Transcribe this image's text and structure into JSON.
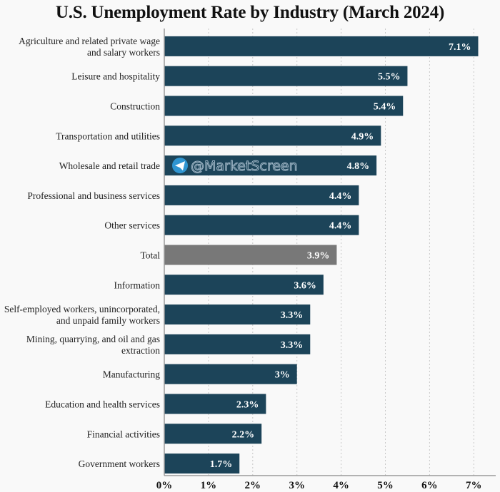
{
  "chart_data": {
    "type": "bar",
    "orientation": "horizontal",
    "title": "U.S. Unemployment Rate by Industry (March 2024)",
    "xlabel": "",
    "ylabel": "",
    "xlim": [
      0,
      7.5
    ],
    "xticks": [
      0,
      1,
      2,
      3,
      4,
      5,
      6,
      7
    ],
    "xtick_labels": [
      "0%",
      "1%",
      "2%",
      "3%",
      "4%",
      "5%",
      "6%",
      "7%"
    ],
    "grid": "x-dotted",
    "categories": [
      [
        "Agriculture and related private wage",
        "and salary workers"
      ],
      [
        "Leisure and hospitality"
      ],
      [
        "Construction"
      ],
      [
        "Transportation and utilities"
      ],
      [
        "Wholesale and retail trade"
      ],
      [
        "Professional and business services"
      ],
      [
        "Other services"
      ],
      [
        "Total"
      ],
      [
        "Information"
      ],
      [
        "Self-employed workers, unincorporated,",
        "and unpaid family workers"
      ],
      [
        "Mining, quarrying, and oil and gas",
        "extraction"
      ],
      [
        "Manufacturing"
      ],
      [
        "Education and health services"
      ],
      [
        "Financial activities"
      ],
      [
        "Government workers"
      ]
    ],
    "values": [
      7.1,
      5.5,
      5.4,
      4.9,
      4.8,
      4.4,
      4.4,
      3.9,
      3.6,
      3.3,
      3.3,
      3.0,
      2.3,
      2.2,
      1.7
    ],
    "value_labels": [
      "7.1%",
      "5.5%",
      "5.4%",
      "4.9%",
      "4.8%",
      "4.4%",
      "4.4%",
      "3.9%",
      "3.6%",
      "3.3%",
      "3.3%",
      "3%",
      "2.3%",
      "2.2%",
      "1.7%"
    ],
    "highlight_index": 7,
    "colors": {
      "bar": "#1c4459",
      "highlight": "#787878",
      "grid": "#c8c8c8",
      "axis": "#9a9a9a"
    }
  },
  "watermark": {
    "text": "@MarketScreen",
    "icon": "telegram-icon",
    "icon_color": "#2f95d1"
  }
}
